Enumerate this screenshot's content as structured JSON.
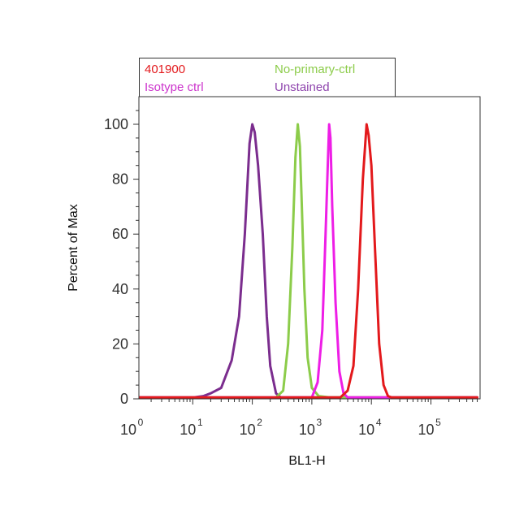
{
  "chart_data": {
    "type": "line",
    "xlabel": "BL1-H",
    "ylabel": "Percent of Max",
    "x_scale": "log",
    "xlim": [
      1,
      600000
    ],
    "ylim": [
      0,
      110
    ],
    "x_ticks": [
      {
        "value": 1,
        "base": "10",
        "exp": "0"
      },
      {
        "value": 10,
        "base": "10",
        "exp": "1"
      },
      {
        "value": 100,
        "base": "10",
        "exp": "2"
      },
      {
        "value": 1000,
        "base": "10",
        "exp": "3"
      },
      {
        "value": 10000,
        "base": "10",
        "exp": "4"
      },
      {
        "value": 100000,
        "base": "10",
        "exp": "5"
      }
    ],
    "y_ticks": [
      "0",
      "20",
      "40",
      "60",
      "80",
      "100"
    ],
    "grid": false,
    "legend_position": "top",
    "series": [
      {
        "name": "Unstained",
        "color": "#7b2d8e",
        "x": [
          1,
          10,
          15,
          20,
          30,
          45,
          60,
          75,
          90,
          100,
          110,
          125,
          150,
          175,
          200,
          250,
          300,
          600000
        ],
        "y": [
          0.5,
          0.5,
          1,
          2,
          4,
          14,
          30,
          60,
          93,
          100,
          97,
          85,
          60,
          30,
          12,
          2,
          0.5,
          0.5
        ]
      },
      {
        "name": "No-primary-ctrl",
        "color": "#8ccc4a",
        "x": [
          1,
          250,
          330,
          400,
          470,
          530,
          580,
          630,
          680,
          750,
          850,
          1000,
          1300,
          2000,
          600000
        ],
        "y": [
          0.5,
          0.5,
          3,
          20,
          55,
          88,
          100,
          92,
          70,
          40,
          15,
          4,
          1,
          0.5,
          0.5
        ]
      },
      {
        "name": "Isotype ctrl",
        "color": "#ee1ee6",
        "x": [
          1,
          1000,
          1250,
          1500,
          1700,
          1850,
          1950,
          2050,
          2200,
          2500,
          2900,
          3400,
          4000,
          600000
        ],
        "y": [
          0.5,
          0.5,
          6,
          25,
          60,
          85,
          100,
          95,
          70,
          35,
          10,
          2,
          0.5,
          0.5
        ]
      },
      {
        "name": "401900",
        "color": "#e3191c",
        "x": [
          1,
          3000,
          4000,
          5000,
          6000,
          7200,
          8300,
          9000,
          10000,
          11500,
          13500,
          16000,
          19000,
          22000,
          600000
        ],
        "y": [
          0.5,
          0.5,
          3,
          12,
          40,
          80,
          100,
          96,
          85,
          55,
          20,
          5,
          1,
          0.5,
          0.5
        ]
      }
    ]
  },
  "legend": {
    "items": [
      {
        "label": "401900",
        "color": "#e3191c"
      },
      {
        "label": "No-primary-ctrl",
        "color": "#8ccc4a"
      },
      {
        "label": "Isotype ctrl",
        "color": "#cc33cc"
      },
      {
        "label": "Unstained",
        "color": "#8e44ad"
      }
    ]
  }
}
